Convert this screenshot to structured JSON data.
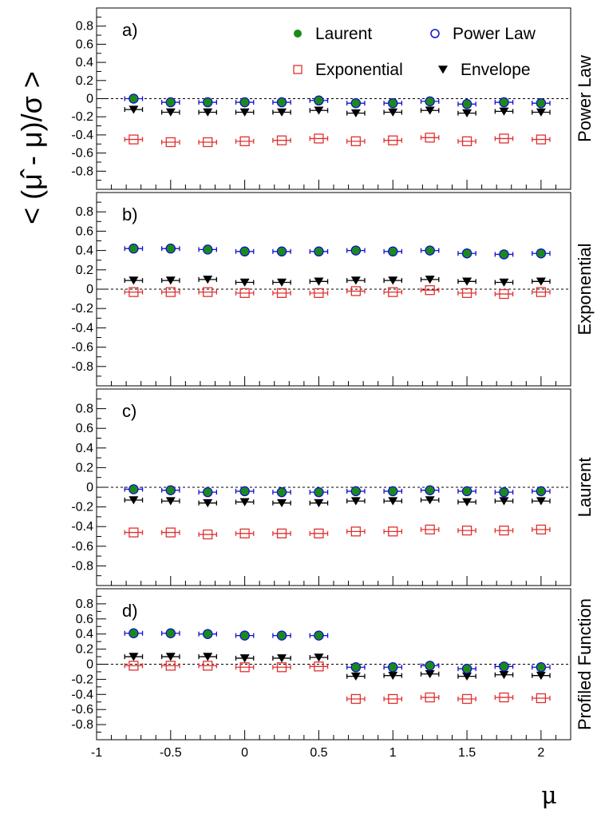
{
  "chart_data": {
    "type": "scatter",
    "ylabel": "< (μ̂ - μ)/σ >",
    "xlabel": "μ",
    "xlim": [
      -1,
      2.2
    ],
    "ylim": [
      -1,
      1
    ],
    "x_ticks": [
      "-1",
      "-0.5",
      "0",
      "0.5",
      "1",
      "1.5",
      "2"
    ],
    "y_ticks": [
      "0.8",
      "0.6",
      "0.4",
      "0.2",
      "0",
      "-0.2",
      "-0.4",
      "-0.6",
      "-0.8"
    ],
    "x_error": 0.06,
    "legend": {
      "position": "top-right",
      "entries": [
        {
          "name": "Laurent",
          "marker": "filled-circle",
          "color": "#1a8a1a"
        },
        {
          "name": "Power Law",
          "marker": "open-circle",
          "color": "#1010cc"
        },
        {
          "name": "Exponential",
          "marker": "open-square",
          "color": "#e03030"
        },
        {
          "name": "Envelope",
          "marker": "filled-triangle-down",
          "color": "#000000"
        }
      ]
    },
    "x": [
      -0.75,
      -0.5,
      -0.25,
      0,
      0.25,
      0.5,
      0.75,
      1,
      1.25,
      1.5,
      1.75,
      2
    ],
    "panels": [
      {
        "tag": "a)",
        "side_label": "Power Law",
        "series": [
          {
            "name": "Exponential",
            "values": [
              -0.45,
              -0.48,
              -0.48,
              -0.47,
              -0.46,
              -0.44,
              -0.47,
              -0.46,
              -0.43,
              -0.47,
              -0.44,
              -0.45
            ]
          },
          {
            "name": "Envelope",
            "values": [
              -0.12,
              -0.15,
              -0.15,
              -0.15,
              -0.15,
              -0.13,
              -0.16,
              -0.15,
              -0.13,
              -0.16,
              -0.14,
              -0.15
            ]
          },
          {
            "name": "Power Law",
            "values": [
              0.0,
              -0.04,
              -0.04,
              -0.04,
              -0.04,
              -0.02,
              -0.05,
              -0.05,
              -0.03,
              -0.06,
              -0.04,
              -0.05
            ]
          },
          {
            "name": "Laurent",
            "values": [
              0.0,
              -0.04,
              -0.04,
              -0.04,
              -0.04,
              -0.02,
              -0.05,
              -0.05,
              -0.03,
              -0.06,
              -0.04,
              -0.05
            ]
          }
        ]
      },
      {
        "tag": "b)",
        "side_label": "Exponential",
        "series": [
          {
            "name": "Exponential",
            "values": [
              -0.03,
              -0.03,
              -0.03,
              -0.04,
              -0.04,
              -0.04,
              -0.02,
              -0.03,
              -0.01,
              -0.04,
              -0.05,
              -0.03
            ]
          },
          {
            "name": "Envelope",
            "values": [
              0.09,
              0.09,
              0.1,
              0.07,
              0.07,
              0.08,
              0.09,
              0.09,
              0.1,
              0.08,
              0.07,
              0.08
            ]
          },
          {
            "name": "Power Law",
            "values": [
              0.42,
              0.42,
              0.41,
              0.39,
              0.39,
              0.39,
              0.4,
              0.39,
              0.4,
              0.37,
              0.36,
              0.37
            ]
          },
          {
            "name": "Laurent",
            "values": [
              0.42,
              0.42,
              0.41,
              0.39,
              0.39,
              0.39,
              0.4,
              0.39,
              0.4,
              0.37,
              0.36,
              0.37
            ]
          }
        ]
      },
      {
        "tag": "c)",
        "side_label": "Laurent",
        "series": [
          {
            "name": "Exponential",
            "values": [
              -0.46,
              -0.46,
              -0.48,
              -0.47,
              -0.47,
              -0.47,
              -0.45,
              -0.45,
              -0.43,
              -0.44,
              -0.44,
              -0.43
            ]
          },
          {
            "name": "Envelope",
            "values": [
              -0.13,
              -0.14,
              -0.16,
              -0.15,
              -0.16,
              -0.16,
              -0.14,
              -0.14,
              -0.13,
              -0.15,
              -0.14,
              -0.14
            ]
          },
          {
            "name": "Power Law",
            "values": [
              -0.02,
              -0.03,
              -0.05,
              -0.04,
              -0.05,
              -0.05,
              -0.04,
              -0.04,
              -0.03,
              -0.04,
              -0.05,
              -0.04
            ]
          },
          {
            "name": "Laurent",
            "values": [
              -0.02,
              -0.03,
              -0.05,
              -0.04,
              -0.05,
              -0.05,
              -0.04,
              -0.04,
              -0.03,
              -0.04,
              -0.05,
              -0.04
            ]
          }
        ]
      },
      {
        "tag": "d)",
        "side_label": "Profiled Function",
        "series": [
          {
            "name": "Exponential",
            "values": [
              -0.02,
              -0.02,
              -0.02,
              -0.04,
              -0.04,
              -0.03,
              -0.46,
              -0.46,
              -0.44,
              -0.46,
              -0.44,
              -0.45
            ]
          },
          {
            "name": "Envelope",
            "values": [
              0.1,
              0.1,
              0.1,
              0.08,
              0.08,
              0.09,
              -0.16,
              -0.15,
              -0.13,
              -0.16,
              -0.14,
              -0.15
            ]
          },
          {
            "name": "Power Law",
            "values": [
              0.41,
              0.41,
              0.4,
              0.38,
              0.38,
              0.38,
              -0.04,
              -0.04,
              -0.02,
              -0.06,
              -0.03,
              -0.04
            ]
          },
          {
            "name": "Laurent",
            "values": [
              0.41,
              0.41,
              0.4,
              0.38,
              0.38,
              0.38,
              -0.04,
              -0.04,
              -0.02,
              -0.06,
              -0.03,
              -0.04
            ]
          }
        ]
      }
    ]
  }
}
